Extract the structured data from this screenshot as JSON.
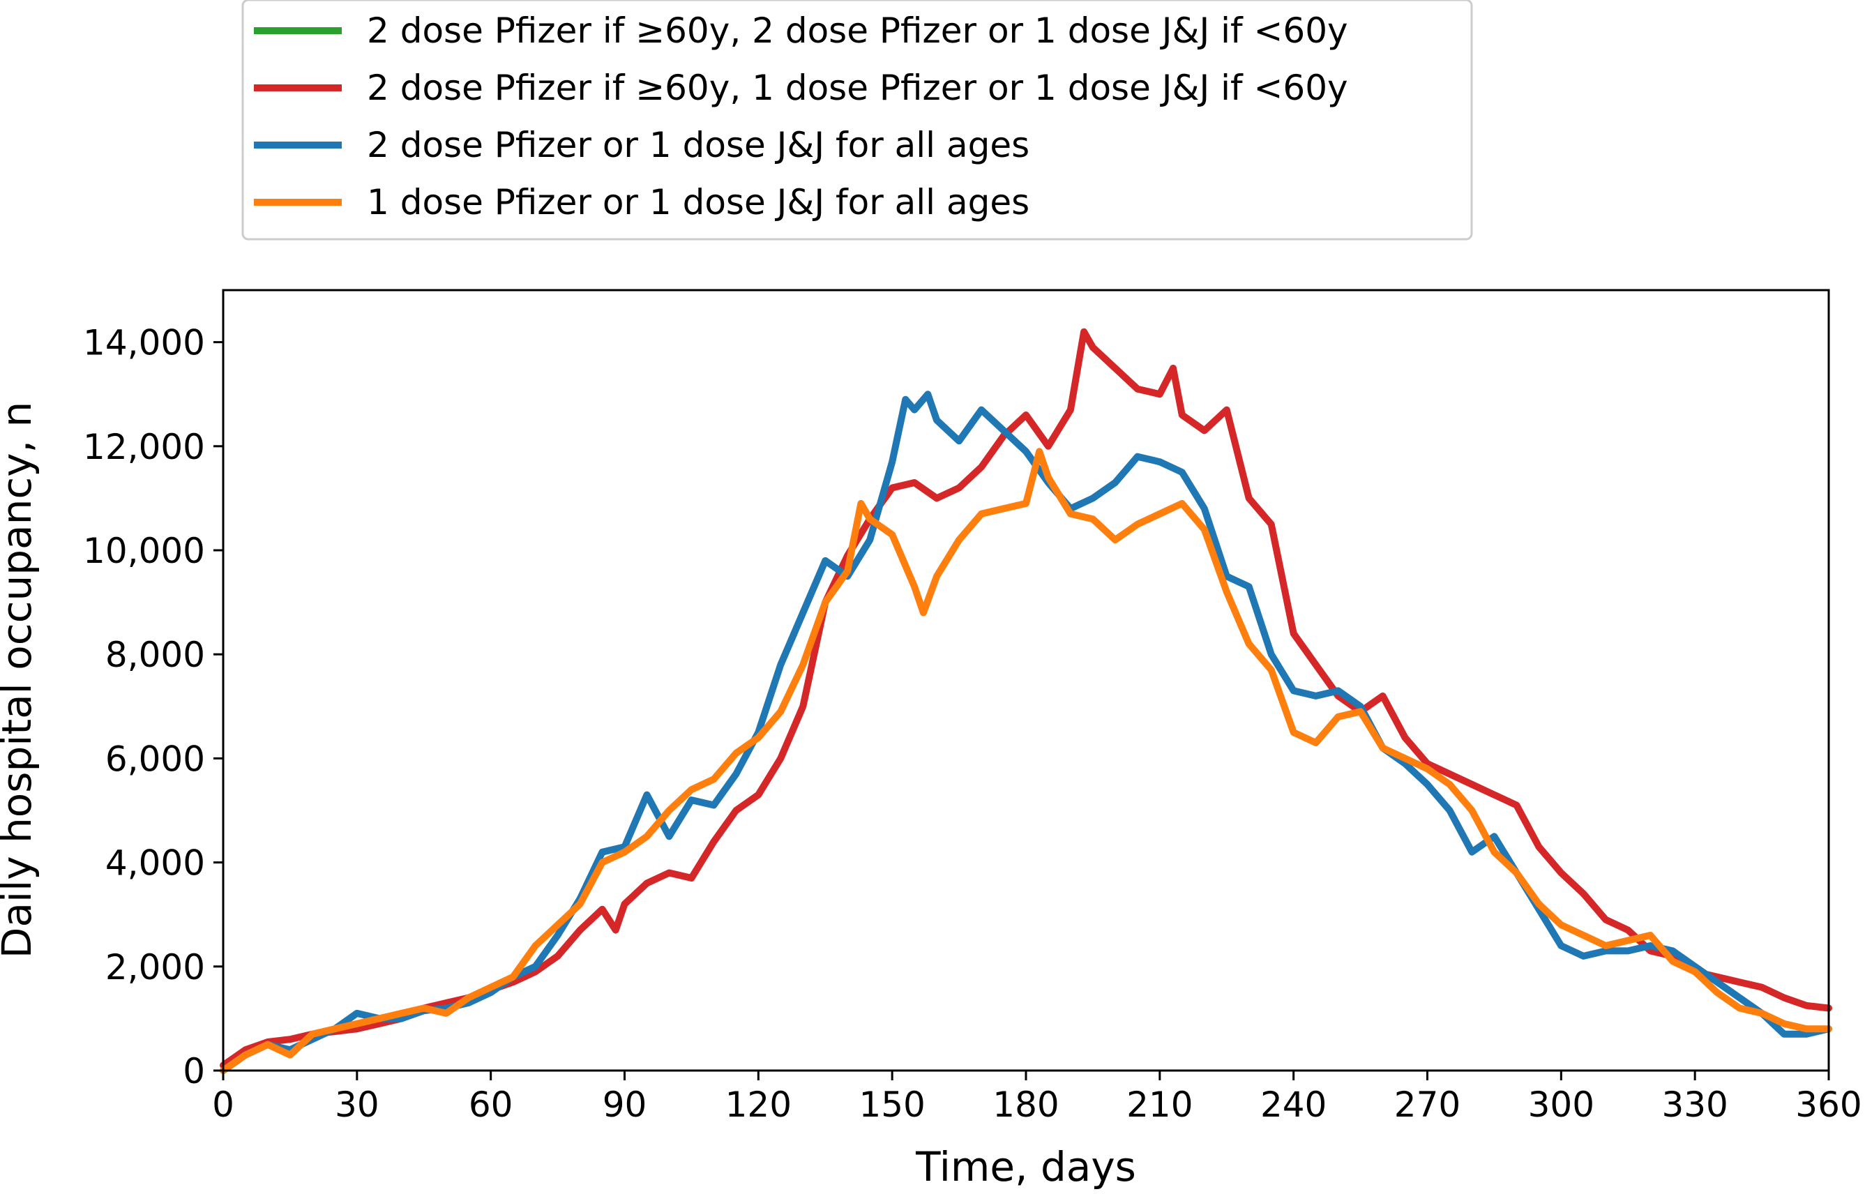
{
  "chart_data": {
    "type": "line",
    "xlabel": "Time, days",
    "ylabel": "Daily hospital occupancy, n",
    "xlim": [
      0,
      360
    ],
    "ylim": [
      0,
      15000
    ],
    "xticks": [
      0,
      30,
      60,
      90,
      120,
      150,
      180,
      210,
      240,
      270,
      300,
      330,
      360
    ],
    "yticks": [
      0,
      2000,
      4000,
      6000,
      8000,
      10000,
      12000,
      14000
    ],
    "xtick_labels": [
      "0",
      "30",
      "60",
      "90",
      "120",
      "150",
      "180",
      "210",
      "240",
      "270",
      "300",
      "330",
      "360"
    ],
    "ytick_labels": [
      "0",
      "2,000",
      "4,000",
      "6,000",
      "8,000",
      "10,000",
      "12,000",
      "14,000"
    ],
    "grid": false,
    "legend_position": "top-center-outside",
    "series": [
      {
        "name": "2 dose Pfizer if ≥60y, 2 dose Pfizer or 1 dose J&J if <60y",
        "color": "#2ca02c",
        "x": [],
        "y": []
      },
      {
        "name": "2 dose Pfizer if ≥60y, 1 dose Pfizer or 1 dose J&J if <60y",
        "color": "#d62728",
        "x": [
          0,
          5,
          10,
          15,
          20,
          25,
          30,
          35,
          40,
          45,
          50,
          55,
          60,
          65,
          70,
          75,
          80,
          85,
          88,
          90,
          95,
          100,
          105,
          110,
          115,
          120,
          125,
          130,
          135,
          140,
          145,
          150,
          155,
          160,
          165,
          170,
          175,
          180,
          185,
          190,
          193,
          195,
          200,
          205,
          210,
          213,
          215,
          220,
          225,
          230,
          235,
          240,
          245,
          250,
          255,
          260,
          265,
          270,
          275,
          280,
          285,
          290,
          295,
          300,
          305,
          310,
          315,
          320,
          325,
          330,
          335,
          340,
          345,
          350,
          355,
          360
        ],
        "y": [
          100,
          400,
          550,
          600,
          700,
          750,
          800,
          900,
          1000,
          1200,
          1300,
          1400,
          1550,
          1700,
          1900,
          2200,
          2700,
          3100,
          2700,
          3200,
          3600,
          3800,
          3700,
          4400,
          5000,
          5300,
          6000,
          7000,
          9000,
          9900,
          10600,
          11200,
          11300,
          11000,
          11200,
          11600,
          12200,
          12600,
          12000,
          12700,
          14200,
          13900,
          13500,
          13100,
          13000,
          13500,
          12600,
          12300,
          12700,
          11000,
          10500,
          8400,
          7800,
          7200,
          6900,
          7200,
          6400,
          5900,
          5700,
          5500,
          5300,
          5100,
          4300,
          3800,
          3400,
          2900,
          2700,
          2300,
          2200,
          1900,
          1800,
          1700,
          1600,
          1400,
          1250,
          1200
        ]
      },
      {
        "name": "2 dose Pfizer or 1 dose J&J for all ages",
        "color": "#1f77b4",
        "x": [
          0,
          5,
          10,
          15,
          20,
          25,
          30,
          35,
          40,
          45,
          50,
          55,
          60,
          65,
          70,
          75,
          80,
          85,
          90,
          95,
          100,
          105,
          110,
          115,
          120,
          125,
          130,
          135,
          140,
          145,
          150,
          153,
          155,
          158,
          160,
          165,
          170,
          175,
          180,
          185,
          190,
          195,
          200,
          205,
          210,
          215,
          220,
          225,
          230,
          235,
          240,
          245,
          250,
          255,
          260,
          265,
          270,
          275,
          280,
          285,
          290,
          295,
          300,
          305,
          310,
          315,
          320,
          325,
          330,
          335,
          340,
          345,
          350,
          355,
          360
        ],
        "y": [
          0,
          300,
          500,
          400,
          600,
          800,
          1100,
          1000,
          1000,
          1150,
          1200,
          1300,
          1500,
          1800,
          2000,
          2600,
          3300,
          4200,
          4300,
          5300,
          4500,
          5200,
          5100,
          5700,
          6500,
          7800,
          8800,
          9800,
          9500,
          10200,
          11700,
          12900,
          12700,
          13000,
          12500,
          12100,
          12700,
          12300,
          11900,
          11300,
          10800,
          11000,
          11300,
          11800,
          11700,
          11500,
          10800,
          9500,
          9300,
          8000,
          7300,
          7200,
          7300,
          7000,
          6200,
          5900,
          5500,
          5000,
          4200,
          4500,
          3800,
          3100,
          2400,
          2200,
          2300,
          2300,
          2400,
          2300,
          2000,
          1700,
          1400,
          1100,
          700,
          700,
          800
        ]
      },
      {
        "name": "1 dose Pfizer or 1 dose J&J for all ages",
        "color": "#ff7f0e",
        "x": [
          0,
          5,
          10,
          15,
          20,
          25,
          30,
          35,
          40,
          45,
          50,
          55,
          60,
          65,
          70,
          75,
          80,
          85,
          90,
          95,
          100,
          105,
          110,
          115,
          120,
          125,
          130,
          135,
          140,
          143,
          145,
          150,
          155,
          157,
          160,
          165,
          170,
          175,
          180,
          183,
          185,
          190,
          195,
          200,
          205,
          210,
          215,
          220,
          225,
          230,
          235,
          240,
          245,
          250,
          255,
          260,
          265,
          270,
          275,
          280,
          285,
          290,
          295,
          300,
          305,
          310,
          315,
          320,
          325,
          330,
          335,
          340,
          345,
          350,
          355,
          360
        ],
        "y": [
          0,
          300,
          500,
          300,
          700,
          800,
          900,
          1000,
          1100,
          1200,
          1100,
          1400,
          1600,
          1800,
          2400,
          2800,
          3200,
          4000,
          4200,
          4500,
          5000,
          5400,
          5600,
          6100,
          6400,
          6900,
          7800,
          9000,
          9600,
          10900,
          10600,
          10300,
          9300,
          8800,
          9500,
          10200,
          10700,
          10800,
          10900,
          11900,
          11400,
          10700,
          10600,
          10200,
          10500,
          10700,
          10900,
          10400,
          9200,
          8200,
          7700,
          6500,
          6300,
          6800,
          6900,
          6200,
          6000,
          5800,
          5500,
          5000,
          4200,
          3800,
          3200,
          2800,
          2600,
          2400,
          2500,
          2600,
          2100,
          1900,
          1500,
          1200,
          1100,
          900,
          800,
          800
        ]
      }
    ]
  }
}
